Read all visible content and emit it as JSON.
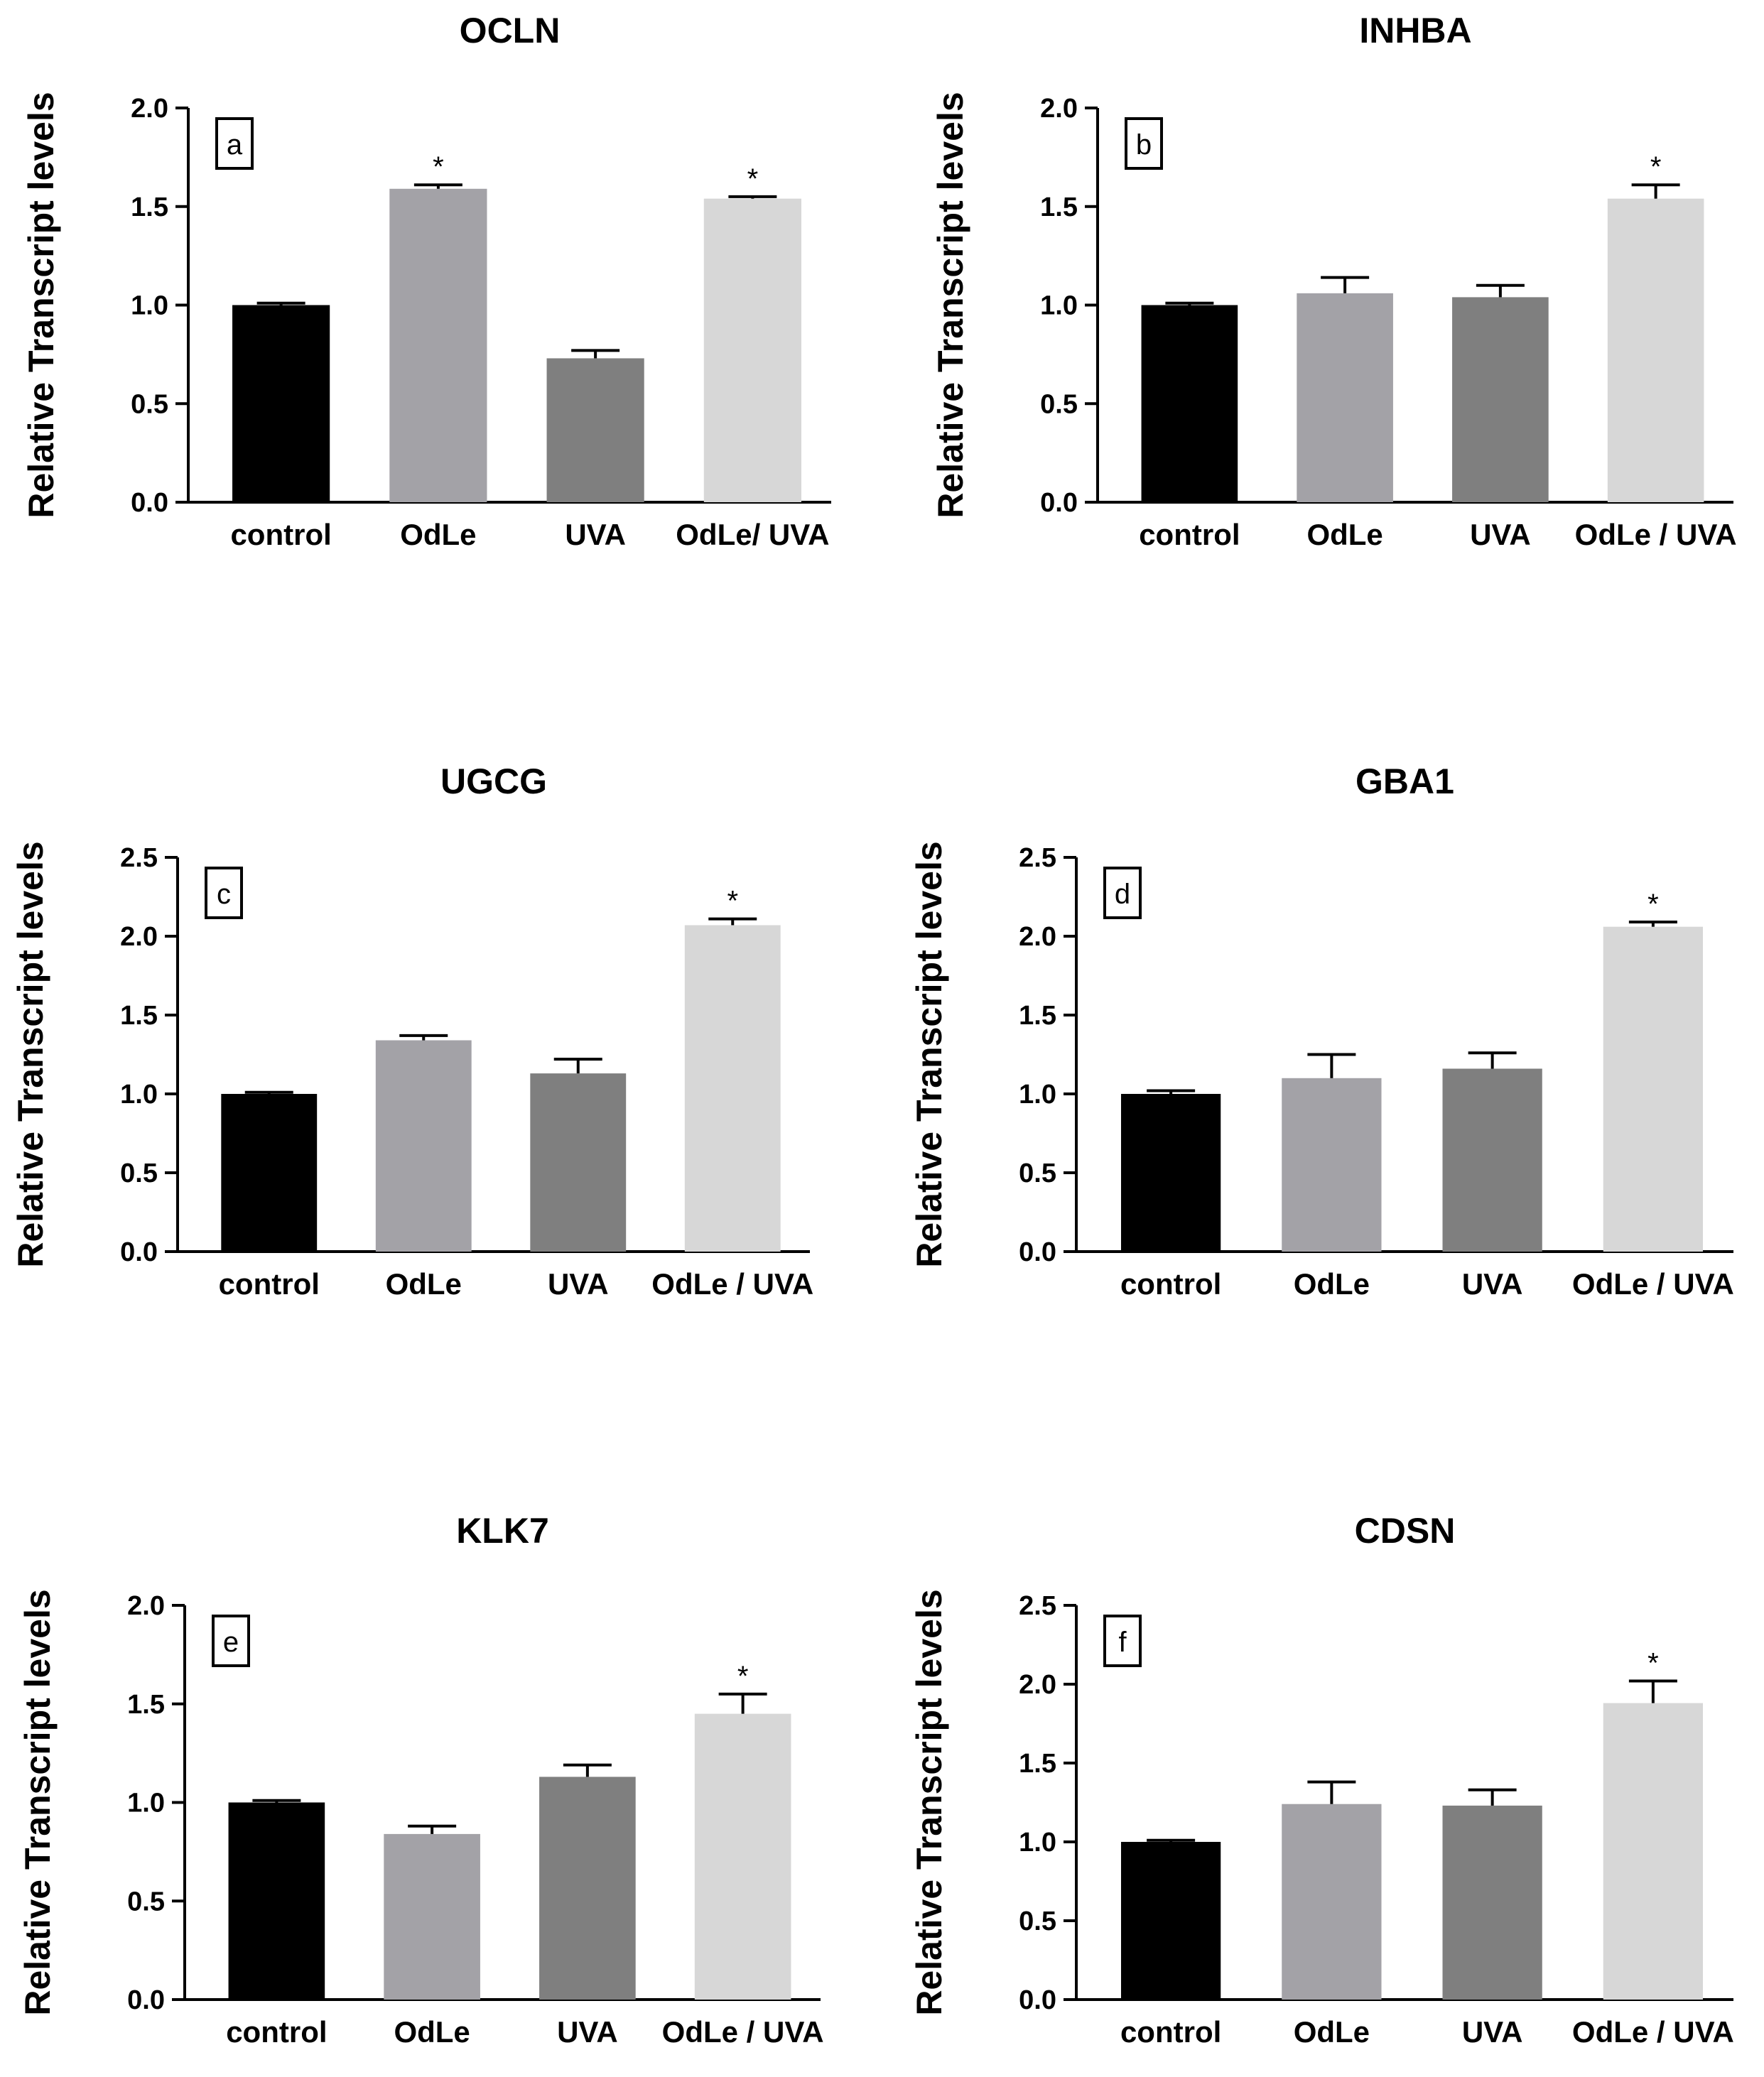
{
  "figure_ylabel": "Relative Transcript levels",
  "colors": {
    "control": "#000000",
    "OdLe": "#a3a2a7",
    "UVA": "#7f7f7f",
    "OdLe/UVA": "#d7d7d7",
    "axis": "#000000"
  },
  "chart_data": [
    {
      "type": "bar",
      "panel": "a",
      "title": "OCLN",
      "ylabel": "Relative Transcript levels",
      "categories": [
        "control",
        "OdLe",
        "UVA",
        "OdLe/ UVA"
      ],
      "values": [
        1.0,
        1.59,
        0.73,
        1.54
      ],
      "errors": [
        0.01,
        0.02,
        0.04,
        0.01
      ],
      "significant": [
        false,
        true,
        false,
        true
      ],
      "ylim": [
        0,
        2.0
      ],
      "yticks": [
        "0.0",
        "0.5",
        "1.0",
        "1.5",
        "2.0"
      ],
      "tick_step": 0.5
    },
    {
      "type": "bar",
      "panel": "b",
      "title": "INHBA",
      "ylabel": "Relative Transcript levels",
      "categories": [
        "control",
        "OdLe",
        "UVA",
        "OdLe / UVA"
      ],
      "values": [
        1.0,
        1.06,
        1.04,
        1.54
      ],
      "errors": [
        0.01,
        0.08,
        0.06,
        0.07
      ],
      "significant": [
        false,
        false,
        false,
        true
      ],
      "ylim": [
        0,
        2.0
      ],
      "yticks": [
        "0.0",
        "0.5",
        "1.0",
        "1.5",
        "2.0"
      ],
      "tick_step": 0.5
    },
    {
      "type": "bar",
      "panel": "c",
      "title": "UGCG",
      "ylabel": "Relative Transcript levels",
      "categories": [
        "control",
        "OdLe",
        "UVA",
        "OdLe / UVA"
      ],
      "values": [
        1.0,
        1.34,
        1.13,
        2.07
      ],
      "errors": [
        0.01,
        0.03,
        0.09,
        0.04
      ],
      "significant": [
        false,
        false,
        false,
        true
      ],
      "ylim": [
        0,
        2.5
      ],
      "yticks": [
        "0.0",
        "0.5",
        "1.0",
        "1.5",
        "2.0",
        "2.5"
      ],
      "tick_step": 0.5
    },
    {
      "type": "bar",
      "panel": "d",
      "title": "GBA1",
      "ylabel": "Relative Transcript levels",
      "categories": [
        "control",
        "OdLe",
        "UVA",
        "OdLe / UVA"
      ],
      "values": [
        1.0,
        1.1,
        1.16,
        2.06
      ],
      "errors": [
        0.02,
        0.15,
        0.1,
        0.03
      ],
      "significant": [
        false,
        false,
        false,
        true
      ],
      "ylim": [
        0,
        2.5
      ],
      "yticks": [
        "0.0",
        "0.5",
        "1.0",
        "1.5",
        "2.0",
        "2.5"
      ],
      "tick_step": 0.5
    },
    {
      "type": "bar",
      "panel": "e",
      "title": "KLK7",
      "ylabel": "Relative Transcript levels",
      "categories": [
        "control",
        "OdLe",
        "UVA",
        "OdLe / UVA"
      ],
      "values": [
        1.0,
        0.84,
        1.13,
        1.45
      ],
      "errors": [
        0.01,
        0.04,
        0.06,
        0.1
      ],
      "significant": [
        false,
        false,
        false,
        true
      ],
      "ylim": [
        0,
        2.0
      ],
      "yticks": [
        "0.0",
        "0.5",
        "1.0",
        "1.5",
        "2.0"
      ],
      "tick_step": 0.5
    },
    {
      "type": "bar",
      "panel": "f",
      "title": "CDSN",
      "ylabel": "Relative Transcript levels",
      "categories": [
        "control",
        "OdLe",
        "UVA",
        "OdLe / UVA"
      ],
      "values": [
        1.0,
        1.24,
        1.23,
        1.88
      ],
      "errors": [
        0.01,
        0.14,
        0.1,
        0.14
      ],
      "significant": [
        false,
        false,
        false,
        true
      ],
      "ylim": [
        0,
        2.5
      ],
      "yticks": [
        "0.0",
        "0.5",
        "1.0",
        "1.5",
        "2.0",
        "2.5"
      ],
      "tick_step": 0.5
    }
  ],
  "significance_marker": "*"
}
